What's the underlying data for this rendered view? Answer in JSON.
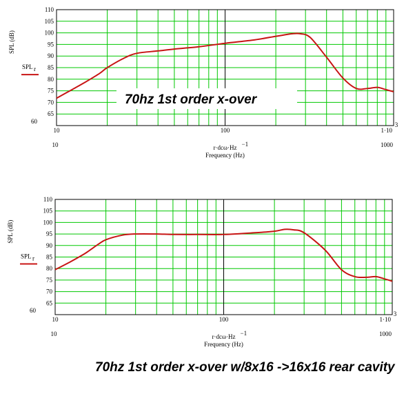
{
  "caption": "70hz 1st order x-over w/8x16 ->16x16 rear cavity",
  "colors": {
    "grid": "#00c800",
    "curve": "#c81414",
    "frame": "#000000"
  },
  "chart_data": [
    {
      "type": "line",
      "title": "70hz 1st order x-over",
      "ylabel": "SPL (dB)",
      "xlabel_1": "r·dcω·Hz",
      "xlabel_1_sup": "−1",
      "xlabel_2": "Frequency (Hz)",
      "legend": {
        "label": "SPL",
        "sub": "r"
      },
      "xscale": "log",
      "xlim": [
        10,
        1000
      ],
      "ylim": [
        60,
        110
      ],
      "yticks": [
        "110",
        "105",
        "100",
        "95",
        "90",
        "85",
        "80",
        "75",
        "70",
        "65",
        "60"
      ],
      "ytick_low": "60",
      "xtick_labels": {
        "left": "10",
        "mid": "100",
        "right_sup_base": "1·10",
        "right_sup_exp": "3"
      },
      "xrange_labels": {
        "left": "10",
        "right": "1000"
      },
      "series": [
        {
          "x": [
            10,
            12,
            15,
            18,
            20,
            25,
            30,
            40,
            50,
            70,
            100,
            150,
            200,
            250,
            280,
            320,
            400,
            500,
            600,
            700,
            800,
            900,
            1000
          ],
          "y": [
            71.8,
            75,
            79,
            82.5,
            85,
            89,
            91.2,
            92.2,
            93,
            94,
            95.5,
            97,
            98.5,
            99.6,
            99.6,
            98,
            89.5,
            80.5,
            76,
            76,
            76.5,
            75.5,
            74.6
          ]
        }
      ]
    },
    {
      "type": "line",
      "title": "",
      "ylabel": "SPL (dB)",
      "xlabel_1": "r·dcω·Hz",
      "xlabel_1_sup": "−1",
      "xlabel_2": "Frequency (Hz)",
      "legend": {
        "label": "SPL",
        "sub": "r"
      },
      "xscale": "log",
      "xlim": [
        10,
        1000
      ],
      "ylim": [
        60,
        110
      ],
      "yticks": [
        "110",
        "105",
        "100",
        "95",
        "90",
        "85",
        "80",
        "75",
        "70",
        "65",
        "60"
      ],
      "ytick_low": "60",
      "xtick_labels": {
        "left": "10",
        "mid": "100",
        "right_sup_base": "1·10",
        "right_sup_exp": "3"
      },
      "xrange_labels": {
        "left": "10",
        "right": "1000"
      },
      "series": [
        {
          "x": [
            10,
            12,
            15,
            18,
            20,
            25,
            30,
            40,
            50,
            70,
            100,
            150,
            200,
            230,
            260,
            300,
            400,
            500,
            600,
            700,
            800,
            900,
            1000
          ],
          "y": [
            79.5,
            82.5,
            86.5,
            90.5,
            92.5,
            94.5,
            95,
            95,
            94.8,
            94.8,
            94.8,
            95.5,
            96.2,
            97,
            96.8,
            95.5,
            88,
            79.5,
            76.5,
            76.2,
            76.5,
            75.5,
            74.5
          ]
        }
      ]
    }
  ]
}
